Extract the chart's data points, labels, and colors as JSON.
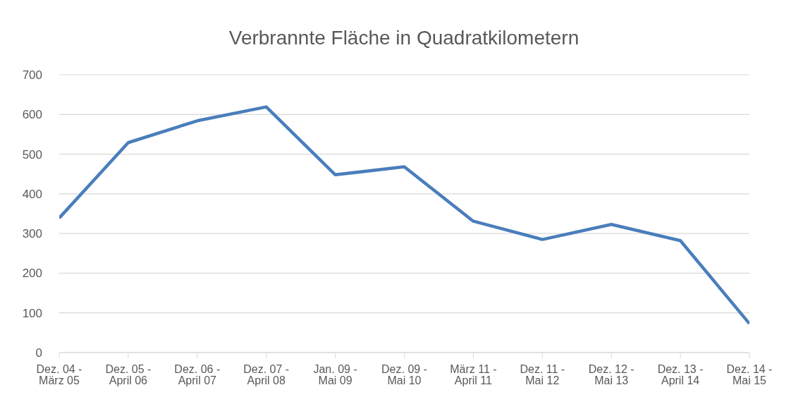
{
  "chart_data": {
    "type": "line",
    "title": "Verbrannte Fläche in Quadratkilometern",
    "categories": [
      "Dez. 04 - März 05",
      "Dez. 05 - April 06",
      "Dez. 06 - April 07",
      "Dez. 07 - April 08",
      "Jan. 09 - Mai 09",
      "Dez. 09 - Mai 10",
      "März 11 - April 11",
      "Dez. 11 - Mai 12",
      "Dez. 12 - Mai 13",
      "Dez. 13 - April 14",
      "Dez. 14 - Mai 15"
    ],
    "series": [
      {
        "color": "#4a7ebb",
        "values": [
          339,
          529,
          584,
          619,
          448,
          468,
          331,
          285,
          323,
          282,
          73
        ]
      }
    ],
    "ylim": [
      0,
      700
    ],
    "yticks": [
      0,
      100,
      200,
      300,
      400,
      500,
      600,
      700
    ],
    "grid": "y",
    "legend": false,
    "marker": "none",
    "line_style": "solid"
  }
}
